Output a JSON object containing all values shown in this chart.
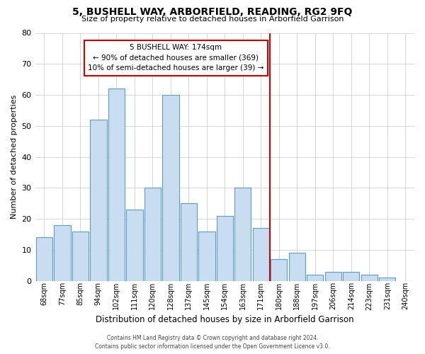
{
  "title": "5, BUSHELL WAY, ARBORFIELD, READING, RG2 9FQ",
  "subtitle": "Size of property relative to detached houses in Arborfield Garrison",
  "xlabel": "Distribution of detached houses by size in Arborfield Garrison",
  "ylabel": "Number of detached properties",
  "footer_line1": "Contains HM Land Registry data © Crown copyright and database right 2024.",
  "footer_line2": "Contains public sector information licensed under the Open Government Licence v3.0.",
  "bar_labels": [
    "68sqm",
    "77sqm",
    "85sqm",
    "94sqm",
    "102sqm",
    "111sqm",
    "120sqm",
    "128sqm",
    "137sqm",
    "145sqm",
    "154sqm",
    "163sqm",
    "171sqm",
    "180sqm",
    "188sqm",
    "197sqm",
    "206sqm",
    "214sqm",
    "223sqm",
    "231sqm",
    "240sqm"
  ],
  "bar_values": [
    14,
    18,
    16,
    52,
    62,
    23,
    30,
    60,
    25,
    16,
    21,
    30,
    17,
    7,
    9,
    2,
    3,
    3,
    2,
    1,
    0
  ],
  "bar_color": "#c8ddf0",
  "bar_edge_color": "#5b9bd5",
  "vline_x": 12.5,
  "vline_color": "#cc0000",
  "annotation_title": "5 BUSHELL WAY: 174sqm",
  "annotation_line2": "← 90% of detached houses are smaller (369)",
  "annotation_line3": "10% of semi-detached houses are larger (39) →",
  "annotation_box_edge": "#cc0000",
  "ylim": [
    0,
    80
  ],
  "yticks": [
    0,
    10,
    20,
    30,
    40,
    50,
    60,
    70,
    80
  ],
  "grid_color": "#d0d0d0",
  "background_color": "#ffffff"
}
